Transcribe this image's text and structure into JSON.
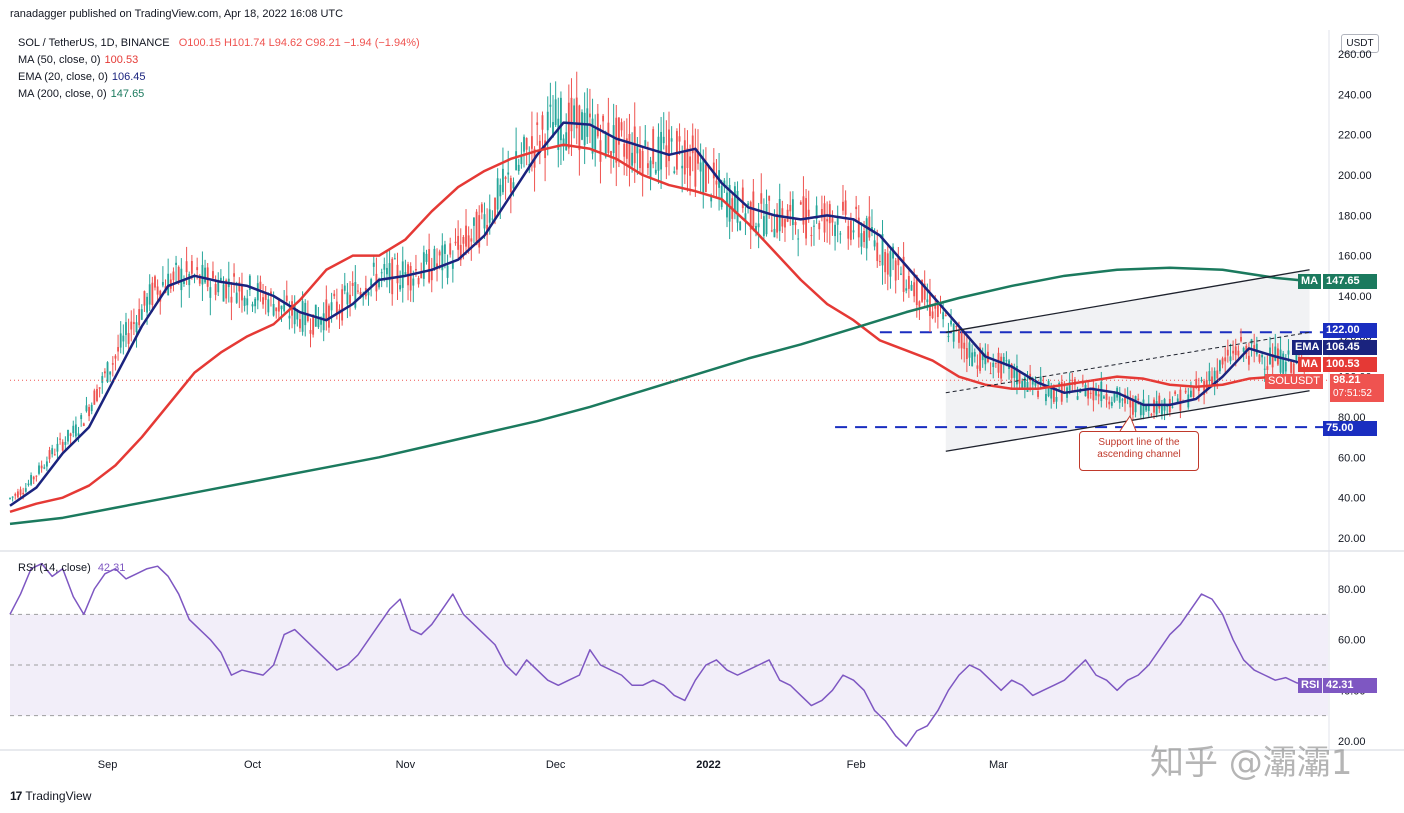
{
  "header": {
    "publisher_line": "ranadagger published on TradingView.com, Apr 18, 2022 16:08 UTC",
    "currency_button": "USDT"
  },
  "legend": {
    "symbol": "SOL / TetherUS, 1D, BINANCE",
    "ohlc": "O100.15  H101.74  L94.62  C98.21  −1.94 (−1.94%)",
    "ma50_label": "MA (50, close, 0)",
    "ma50_value": "100.53",
    "ema20_label": "EMA (20, close, 0)",
    "ema20_value": "106.45",
    "ma200_label": "MA (200, close, 0)",
    "ma200_value": "147.65"
  },
  "rsi_legend": {
    "label": "RSI (14, close)",
    "value": "42.31"
  },
  "tags": {
    "ma200_name": "MA",
    "ma200_val": "147.65",
    "lvl122": "122.00",
    "ema_name": "EMA",
    "ema_val": "106.45",
    "ma50_name": "MA",
    "ma50_val": "100.53",
    "price_name": "SOLUSDT",
    "price_val": "98.21",
    "countdown": "07:51:52",
    "lvl75": "75.00",
    "rsi_name": "RSI",
    "rsi_val": "42.31"
  },
  "annotation": {
    "line1": "Support line of the",
    "line2": "ascending channel"
  },
  "footer": {
    "brand": "TradingView"
  },
  "watermark": "知乎 @灞灞1",
  "colors": {
    "up": "#26a69a",
    "down": "#ef5350",
    "ema": "#1a237e",
    "ma50": "#e53935",
    "ma200": "#1b7a5e",
    "rsi": "#7e57c2",
    "level": "#1a2ec0"
  },
  "chart_data": [
    {
      "type": "candlestick",
      "title": "SOL / TetherUS, 1D, BINANCE",
      "x_ticks": [
        "Sep",
        "Oct",
        "Nov",
        "Dec",
        "2022",
        "Feb",
        "Mar"
      ],
      "y_ticks": [
        20,
        40,
        60,
        80,
        100,
        120,
        140,
        160,
        180,
        200,
        220,
        240,
        260
      ],
      "ylim": [
        14,
        262
      ],
      "grid": false,
      "last_price": 98.21,
      "horizontal_levels": [
        122,
        75
      ],
      "series": [
        {
          "name": "EMA (20, close, 0)",
          "last": 106.45,
          "points": [
            [
              0,
              36
            ],
            [
              10,
              45
            ],
            [
              20,
              62
            ],
            [
              30,
              75
            ],
            [
              40,
              100
            ],
            [
              50,
              125
            ],
            [
              60,
              145
            ],
            [
              70,
              150
            ],
            [
              80,
              147
            ],
            [
              90,
              145
            ],
            [
              100,
              140
            ],
            [
              110,
              132
            ],
            [
              120,
              128
            ],
            [
              130,
              136
            ],
            [
              140,
              148
            ],
            [
              150,
              150
            ],
            [
              160,
              153
            ],
            [
              170,
              158
            ],
            [
              180,
              170
            ],
            [
              190,
              190
            ],
            [
              200,
              210
            ],
            [
              210,
              226
            ],
            [
              220,
              225
            ],
            [
              230,
              218
            ],
            [
              240,
              214
            ],
            [
              250,
              210
            ],
            [
              260,
              213
            ],
            [
              270,
              196
            ],
            [
              280,
              184
            ],
            [
              290,
              180
            ],
            [
              300,
              178
            ],
            [
              310,
              180
            ],
            [
              320,
              178
            ],
            [
              330,
              170
            ],
            [
              340,
              155
            ],
            [
              350,
              140
            ],
            [
              360,
              125
            ],
            [
              370,
              110
            ],
            [
              380,
              105
            ],
            [
              390,
              97
            ],
            [
              400,
              92
            ],
            [
              410,
              94
            ],
            [
              420,
              92
            ],
            [
              430,
              86
            ],
            [
              440,
              86
            ],
            [
              450,
              89
            ],
            [
              460,
              100
            ],
            [
              470,
              114
            ],
            [
              480,
              110
            ],
            [
              491,
              106.45
            ]
          ]
        },
        {
          "name": "MA (50, close, 0)",
          "last": 100.53,
          "points": [
            [
              0,
              33
            ],
            [
              10,
              37
            ],
            [
              20,
              40
            ],
            [
              30,
              46
            ],
            [
              40,
              56
            ],
            [
              50,
              70
            ],
            [
              60,
              86
            ],
            [
              70,
              102
            ],
            [
              80,
              112
            ],
            [
              90,
              120
            ],
            [
              100,
              126
            ],
            [
              110,
              138
            ],
            [
              120,
              153
            ],
            [
              130,
              160
            ],
            [
              140,
              160
            ],
            [
              150,
              168
            ],
            [
              160,
              182
            ],
            [
              170,
              194
            ],
            [
              180,
              202
            ],
            [
              190,
              208
            ],
            [
              200,
              212
            ],
            [
              210,
              215
            ],
            [
              220,
              213
            ],
            [
              230,
              208
            ],
            [
              240,
              200
            ],
            [
              250,
              195
            ],
            [
              260,
              192
            ],
            [
              270,
              188
            ],
            [
              280,
              176
            ],
            [
              290,
              162
            ],
            [
              300,
              148
            ],
            [
              310,
              136
            ],
            [
              320,
              128
            ],
            [
              330,
              118
            ],
            [
              340,
              113
            ],
            [
              350,
              108
            ],
            [
              360,
              100
            ],
            [
              370,
              96
            ],
            [
              380,
              94
            ],
            [
              390,
              94
            ],
            [
              400,
              96
            ],
            [
              410,
              98
            ],
            [
              420,
              100
            ],
            [
              430,
              99
            ],
            [
              440,
              96
            ],
            [
              450,
              95
            ],
            [
              460,
              96
            ],
            [
              470,
              99
            ],
            [
              480,
              100
            ],
            [
              491,
              100.53
            ]
          ]
        },
        {
          "name": "MA (200, close, 0)",
          "last": 147.65,
          "points": [
            [
              0,
              27
            ],
            [
              20,
              30
            ],
            [
              40,
              35
            ],
            [
              60,
              40
            ],
            [
              80,
              45
            ],
            [
              100,
              50
            ],
            [
              120,
              55
            ],
            [
              140,
              60
            ],
            [
              160,
              66
            ],
            [
              180,
              72
            ],
            [
              200,
              78
            ],
            [
              220,
              85
            ],
            [
              240,
              93
            ],
            [
              260,
              101
            ],
            [
              280,
              109
            ],
            [
              300,
              116
            ],
            [
              320,
              124
            ],
            [
              340,
              132
            ],
            [
              360,
              139
            ],
            [
              380,
              145
            ],
            [
              400,
              150
            ],
            [
              420,
              153
            ],
            [
              440,
              154
            ],
            [
              460,
              153
            ],
            [
              480,
              149
            ],
            [
              491,
              147.65
            ]
          ]
        }
      ],
      "trendlines": [
        {
          "name": "channel-upper",
          "from": [
            355,
            122
          ],
          "to": [
            493,
            153
          ]
        },
        {
          "name": "channel-lower",
          "from": [
            355,
            63
          ],
          "to": [
            493,
            93
          ]
        },
        {
          "name": "channel-mid",
          "from": [
            355,
            92
          ],
          "to": [
            493,
            122
          ]
        }
      ]
    },
    {
      "type": "line",
      "title": "RSI (14, close)",
      "y_ticks": [
        20,
        40,
        60,
        80
      ],
      "ylim": [
        16,
        92
      ],
      "bands": [
        30,
        50,
        70
      ],
      "series": [
        {
          "name": "RSI",
          "last": 42.31,
          "points": [
            [
              0,
              70
            ],
            [
              4,
              78
            ],
            [
              8,
              88
            ],
            [
              12,
              90
            ],
            [
              16,
              85
            ],
            [
              20,
              88
            ],
            [
              24,
              77
            ],
            [
              28,
              70
            ],
            [
              32,
              80
            ],
            [
              36,
              86
            ],
            [
              40,
              88
            ],
            [
              44,
              84
            ],
            [
              48,
              86
            ],
            [
              52,
              88
            ],
            [
              56,
              89
            ],
            [
              60,
              85
            ],
            [
              64,
              78
            ],
            [
              68,
              68
            ],
            [
              72,
              64
            ],
            [
              76,
              60
            ],
            [
              80,
              55
            ],
            [
              84,
              46
            ],
            [
              88,
              48
            ],
            [
              92,
              47
            ],
            [
              96,
              46
            ],
            [
              100,
              50
            ],
            [
              104,
              62
            ],
            [
              108,
              64
            ],
            [
              112,
              60
            ],
            [
              116,
              56
            ],
            [
              120,
              52
            ],
            [
              124,
              48
            ],
            [
              128,
              50
            ],
            [
              132,
              54
            ],
            [
              136,
              60
            ],
            [
              140,
              66
            ],
            [
              144,
              72
            ],
            [
              148,
              76
            ],
            [
              152,
              64
            ],
            [
              156,
              62
            ],
            [
              160,
              66
            ],
            [
              164,
              72
            ],
            [
              168,
              78
            ],
            [
              172,
              70
            ],
            [
              176,
              66
            ],
            [
              180,
              62
            ],
            [
              184,
              58
            ],
            [
              188,
              50
            ],
            [
              192,
              46
            ],
            [
              196,
              52
            ],
            [
              200,
              48
            ],
            [
              204,
              44
            ],
            [
              208,
              42
            ],
            [
              212,
              44
            ],
            [
              216,
              46
            ],
            [
              220,
              56
            ],
            [
              224,
              50
            ],
            [
              228,
              48
            ],
            [
              232,
              46
            ],
            [
              236,
              42
            ],
            [
              240,
              42
            ],
            [
              244,
              44
            ],
            [
              248,
              42
            ],
            [
              252,
              38
            ],
            [
              256,
              36
            ],
            [
              260,
              44
            ],
            [
              264,
              50
            ],
            [
              268,
              52
            ],
            [
              272,
              48
            ],
            [
              276,
              46
            ],
            [
              280,
              48
            ],
            [
              284,
              50
            ],
            [
              288,
              52
            ],
            [
              292,
              44
            ],
            [
              296,
              42
            ],
            [
              300,
              38
            ],
            [
              304,
              34
            ],
            [
              308,
              36
            ],
            [
              312,
              40
            ],
            [
              316,
              46
            ],
            [
              320,
              44
            ],
            [
              324,
              40
            ],
            [
              328,
              32
            ],
            [
              332,
              28
            ],
            [
              336,
              22
            ],
            [
              340,
              18
            ],
            [
              344,
              24
            ],
            [
              348,
              26
            ],
            [
              352,
              32
            ],
            [
              356,
              40
            ],
            [
              360,
              46
            ],
            [
              364,
              50
            ],
            [
              368,
              48
            ],
            [
              372,
              44
            ],
            [
              376,
              40
            ],
            [
              380,
              44
            ],
            [
              384,
              42
            ],
            [
              388,
              38
            ],
            [
              392,
              40
            ],
            [
              396,
              42
            ],
            [
              400,
              44
            ],
            [
              404,
              48
            ],
            [
              408,
              52
            ],
            [
              412,
              46
            ],
            [
              416,
              44
            ],
            [
              420,
              40
            ],
            [
              424,
              44
            ],
            [
              428,
              46
            ],
            [
              432,
              50
            ],
            [
              436,
              56
            ],
            [
              440,
              62
            ],
            [
              444,
              66
            ],
            [
              448,
              72
            ],
            [
              452,
              78
            ],
            [
              456,
              76
            ],
            [
              460,
              70
            ],
            [
              464,
              60
            ],
            [
              468,
              52
            ],
            [
              472,
              48
            ],
            [
              476,
              46
            ],
            [
              480,
              44
            ],
            [
              484,
              45
            ],
            [
              488,
              43
            ],
            [
              491,
              42.31
            ]
          ]
        }
      ]
    }
  ]
}
